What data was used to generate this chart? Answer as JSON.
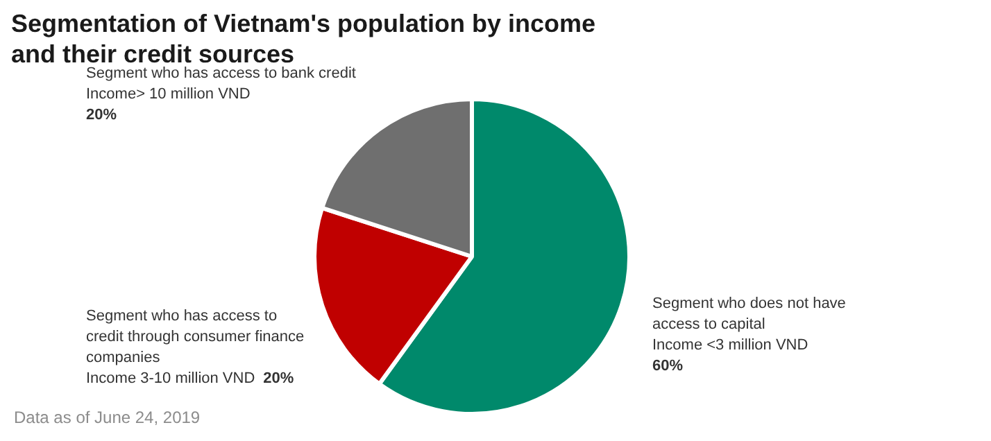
{
  "chart_data": {
    "type": "pie",
    "title": "Segmentation of Vietnam's population by income\nand their credit sources",
    "categories": [
      "Segment who does not have\naccess to capital\nIncome <3 million VND",
      "Segment who has access to\ncredit through consumer finance\ncompanies\nIncome 3-10 million VND",
      "Segment who has access to bank credit\nIncome> 10 million VND"
    ],
    "values": [
      60,
      20,
      20
    ],
    "colors": [
      "#00896b",
      "#c00000",
      "#6f6f6f"
    ],
    "value_labels": [
      "60%",
      "20%",
      "20%"
    ],
    "legend": false,
    "annotations": [
      "Data as of June 24, 2019"
    ]
  }
}
